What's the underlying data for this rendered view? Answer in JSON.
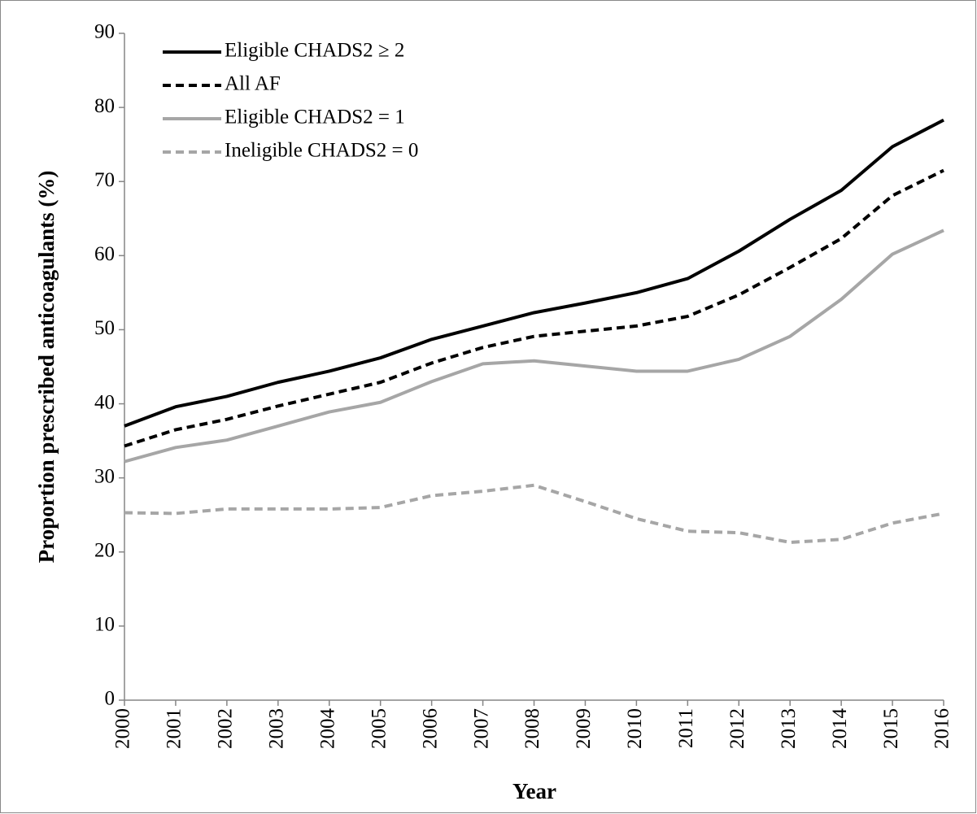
{
  "chart_data": {
    "type": "line",
    "x_label": "Year",
    "y_label": "Proportion prescribed anticoagulants (%)",
    "categories": [
      "2000",
      "2001",
      "2002",
      "2003",
      "2004",
      "2005",
      "2006",
      "2007",
      "2008",
      "2009",
      "2010",
      "2011",
      "2012",
      "2013",
      "2014",
      "2015",
      "2016"
    ],
    "series": [
      {
        "name": "Eligible CHADS2 ≥ 2",
        "color": "#000000",
        "dash": false,
        "values": [
          37.0,
          39.6,
          41.0,
          42.9,
          44.4,
          46.2,
          48.7,
          50.5,
          52.3,
          53.6,
          55.0,
          56.9,
          60.6,
          64.9,
          68.8,
          74.7,
          78.3
        ]
      },
      {
        "name": "All AF",
        "color": "#000000",
        "dash": true,
        "values": [
          34.3,
          36.5,
          37.9,
          39.7,
          41.3,
          42.9,
          45.5,
          47.6,
          49.1,
          49.8,
          50.5,
          51.8,
          54.7,
          58.4,
          62.3,
          68.1,
          71.5
        ]
      },
      {
        "name": "Eligible CHADS2 = 1",
        "color": "#a6a6a6",
        "dash": false,
        "values": [
          32.2,
          34.1,
          35.1,
          37.0,
          38.9,
          40.2,
          43.0,
          45.4,
          45.8,
          45.1,
          44.4,
          44.4,
          46.0,
          49.1,
          54.1,
          60.2,
          63.4
        ]
      },
      {
        "name": "Ineligible CHADS2 = 0",
        "color": "#a6a6a6",
        "dash": true,
        "values": [
          25.3,
          25.2,
          25.8,
          25.8,
          25.8,
          26.0,
          27.6,
          28.2,
          29.0,
          26.8,
          24.5,
          22.8,
          22.6,
          21.3,
          21.7,
          23.9,
          25.2
        ]
      }
    ],
    "ylim": [
      0,
      90
    ],
    "yticks": [
      0,
      10,
      20,
      30,
      40,
      50,
      60,
      70,
      80,
      90
    ],
    "legend": "top-left",
    "grid": false
  }
}
